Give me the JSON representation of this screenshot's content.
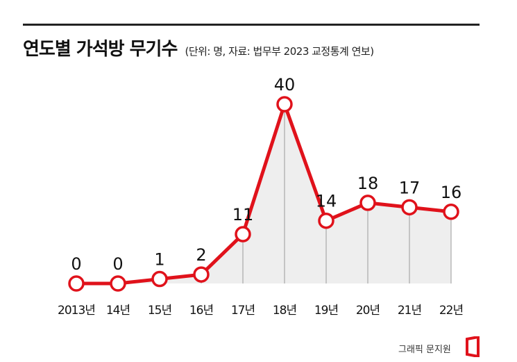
{
  "header": {
    "title": "연도별 가석방 무기수",
    "subtitle": "(단위: 명, 자료: 법무부 2023 교정통계 연보)"
  },
  "chart_data": {
    "type": "line",
    "title": "연도별 가석방 무기수",
    "subtitle": "(단위: 명, 자료: 법무부 2023 교정통계 연보)",
    "categories": [
      "2013년",
      "14년",
      "15년",
      "16년",
      "17년",
      "18년",
      "19년",
      "20년",
      "21년",
      "22년"
    ],
    "values": [
      0,
      0,
      1,
      2,
      11,
      40,
      14,
      18,
      17,
      16
    ],
    "ylim": [
      0,
      40
    ],
    "grid": false,
    "legend": "none",
    "colors": {
      "line": "#e0121b",
      "marker_fill": "#ffffff",
      "area_fill": "#eeeeee",
      "drop_line": "#999999"
    }
  },
  "footer": {
    "credit": "그래픽 문지원",
    "logo_color": "#e0121b"
  }
}
